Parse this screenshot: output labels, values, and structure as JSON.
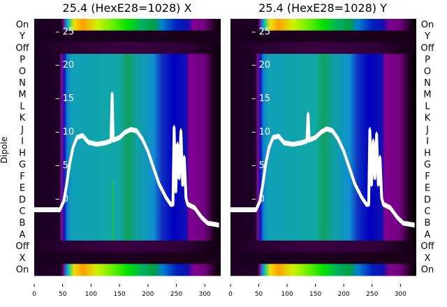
{
  "chart_data": [
    {
      "type": "heatmap",
      "title": "25.4 (HexE28=1028) X",
      "ylabel": "Dipole",
      "row_labels": [
        "On",
        "Y",
        "Off",
        "P",
        "O",
        "N",
        "M",
        "L",
        "K",
        "J",
        "I",
        "H",
        "G",
        "F",
        "E",
        "D",
        "C",
        "B",
        "A",
        "Off",
        "X",
        "On"
      ],
      "xlim": [
        0,
        328
      ],
      "xticks": [
        0,
        50,
        100,
        150,
        200,
        250,
        300
      ],
      "overlay_ylim": [
        -11.6,
        26.8
      ],
      "overlay_yticks": [
        0,
        5,
        10,
        15,
        20,
        25
      ],
      "overlay_line": [
        [
          0,
          -1.8
        ],
        [
          45,
          -1.8
        ],
        [
          52,
          -0.5
        ],
        [
          57,
          2
        ],
        [
          62,
          5
        ],
        [
          68,
          7.5
        ],
        [
          75,
          9
        ],
        [
          85,
          9.3
        ],
        [
          95,
          8.3
        ],
        [
          110,
          8
        ],
        [
          125,
          8.2
        ],
        [
          135,
          8.5
        ],
        [
          137,
          15.5
        ],
        [
          139,
          8.6
        ],
        [
          150,
          9
        ],
        [
          160,
          9.8
        ],
        [
          170,
          10.2
        ],
        [
          180,
          10
        ],
        [
          190,
          8.8
        ],
        [
          200,
          7
        ],
        [
          210,
          4.5
        ],
        [
          220,
          2
        ],
        [
          232,
          0
        ],
        [
          240,
          -1
        ],
        [
          244,
          -1
        ],
        [
          246,
          10.5
        ],
        [
          249,
          1
        ],
        [
          252,
          8
        ],
        [
          255,
          3
        ],
        [
          258,
          10
        ],
        [
          261,
          2
        ],
        [
          264,
          6
        ],
        [
          267,
          0
        ],
        [
          270,
          -1
        ],
        [
          282,
          -1.5
        ],
        [
          295,
          -3
        ],
        [
          305,
          -3.8
        ],
        [
          325,
          -4.1
        ]
      ],
      "spike_green_x": 138
    },
    {
      "type": "heatmap",
      "title": "25.4 (HexE28=1028) Y",
      "row_labels": [
        "On",
        "Y",
        "Off",
        "P",
        "O",
        "N",
        "M",
        "L",
        "K",
        "J",
        "I",
        "H",
        "G",
        "F",
        "E",
        "D",
        "C",
        "B",
        "A",
        "Off",
        "X",
        "On"
      ],
      "xlim": [
        0,
        328
      ],
      "xticks": [
        0,
        50,
        100,
        150,
        200,
        250,
        300
      ],
      "overlay_ylim": [
        -11.6,
        26.8
      ],
      "overlay_yticks": [
        0,
        5,
        10,
        15,
        20,
        25
      ],
      "overlay_line": [
        [
          0,
          -1.8
        ],
        [
          45,
          -1.8
        ],
        [
          52,
          -0.5
        ],
        [
          57,
          2
        ],
        [
          62,
          5
        ],
        [
          68,
          7.5
        ],
        [
          75,
          9
        ],
        [
          85,
          9.2
        ],
        [
          95,
          8.2
        ],
        [
          110,
          8
        ],
        [
          125,
          8.2
        ],
        [
          135,
          8.5
        ],
        [
          137,
          12.5
        ],
        [
          139,
          8.6
        ],
        [
          150,
          9
        ],
        [
          160,
          9.8
        ],
        [
          170,
          10.3
        ],
        [
          180,
          10
        ],
        [
          190,
          8.8
        ],
        [
          200,
          7
        ],
        [
          210,
          4.5
        ],
        [
          220,
          2
        ],
        [
          232,
          0
        ],
        [
          240,
          -1
        ],
        [
          244,
          -1
        ],
        [
          246,
          10.2
        ],
        [
          249,
          2
        ],
        [
          252,
          8.5
        ],
        [
          255,
          3
        ],
        [
          258,
          9.5
        ],
        [
          261,
          2
        ],
        [
          264,
          6
        ],
        [
          267,
          0
        ],
        [
          270,
          -1
        ],
        [
          282,
          -1.5
        ],
        [
          295,
          -3
        ],
        [
          305,
          -3.8
        ],
        [
          325,
          -4.1
        ]
      ]
    }
  ],
  "colors": {
    "mid_rows": [
      [
        0,
        "#1a0020"
      ],
      [
        44,
        "#1f0028"
      ],
      [
        48,
        "#7a1090"
      ],
      [
        53,
        "#1010c0"
      ],
      [
        58,
        "#1080d0"
      ],
      [
        66,
        "#10a0b8"
      ],
      [
        150,
        "#10a8a4"
      ],
      [
        165,
        "#10a060"
      ],
      [
        180,
        "#10a0a0"
      ],
      [
        210,
        "#1090d0"
      ],
      [
        225,
        "#1030c0"
      ],
      [
        245,
        "#0000c0"
      ],
      [
        268,
        "#1010b0"
      ],
      [
        272,
        "#800090"
      ],
      [
        300,
        "#700080"
      ],
      [
        315,
        "#200020"
      ],
      [
        328,
        "#000000"
      ]
    ],
    "on_rows": [
      [
        0,
        "#1a0020"
      ],
      [
        48,
        "#1f0028"
      ],
      [
        52,
        "#7a1090"
      ],
      [
        56,
        "#1080e0"
      ],
      [
        62,
        "#30d080"
      ],
      [
        70,
        "#f0e000"
      ],
      [
        85,
        "#ffa000"
      ],
      [
        110,
        "#d0f000"
      ],
      [
        140,
        "#60f000"
      ],
      [
        165,
        "#00e000"
      ],
      [
        190,
        "#00b060"
      ],
      [
        210,
        "#00a040"
      ],
      [
        225,
        "#0080d0"
      ],
      [
        250,
        "#0020c0"
      ],
      [
        270,
        "#1010b0"
      ],
      [
        280,
        "#800090"
      ],
      [
        300,
        "#700080"
      ],
      [
        318,
        "#200020"
      ],
      [
        328,
        "#000000"
      ]
    ],
    "off_rows": [
      [
        0,
        "#1a0020"
      ],
      [
        50,
        "#2a0030"
      ],
      [
        150,
        "#3a0040"
      ],
      [
        260,
        "#300038"
      ],
      [
        328,
        "#100010"
      ]
    ],
    "y_rows": [
      [
        0,
        "#1a0020"
      ],
      [
        328,
        "#1a0018"
      ]
    ]
  }
}
